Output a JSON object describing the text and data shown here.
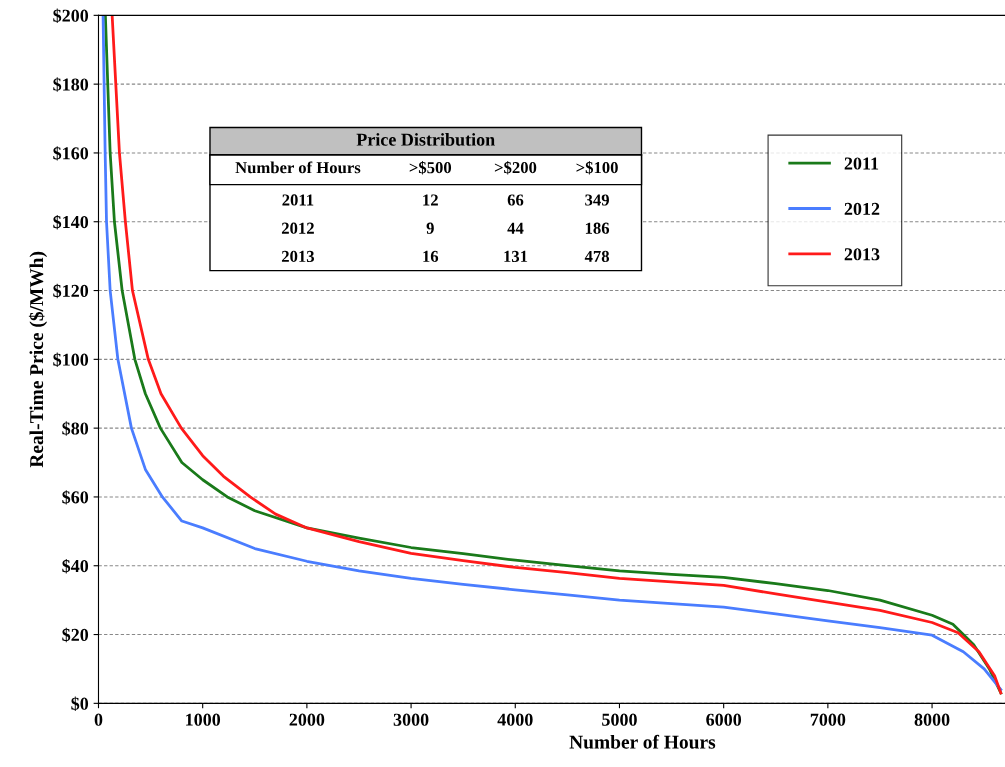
{
  "chart_data": {
    "type": "line",
    "xlabel": "Number of Hours",
    "ylabel": "Real-Time Price ($/MWh)",
    "xlim": [
      0,
      8700
    ],
    "xticks": [
      0,
      1000,
      2000,
      3000,
      4000,
      5000,
      6000,
      7000,
      8000
    ],
    "ylim": [
      0,
      200
    ],
    "yticks": [
      {
        "value": 0,
        "label": "$0"
      },
      {
        "value": 20,
        "label": "$20"
      },
      {
        "value": 40,
        "label": "$40"
      },
      {
        "value": 60,
        "label": "$60"
      },
      {
        "value": 80,
        "label": "$80"
      },
      {
        "value": 100,
        "label": "$100"
      },
      {
        "value": 120,
        "label": "$120"
      },
      {
        "value": 140,
        "label": "$140"
      },
      {
        "value": 160,
        "label": "$160"
      },
      {
        "value": 180,
        "label": "$180"
      },
      {
        "value": 200,
        "label": "$200"
      }
    ],
    "grid": "y",
    "legend": "top right",
    "marker": "none",
    "line_style": "solid",
    "annotations": [
      "Price Distribution",
      "Number of Hours",
      ">$500",
      ">$200",
      ">$100",
      "2011",
      "12",
      "66",
      "349",
      "2012",
      "9",
      "44",
      "186",
      "2013",
      "16",
      "131",
      "478"
    ],
    "series": [
      {
        "name": "2011",
        "color": "#1a7a1a",
        "x": [
          66,
          112,
          153,
          227,
          349,
          450,
          594,
          800,
          1000,
          1236,
          1500,
          2000,
          2500,
          3000,
          3500,
          4000,
          4500,
          5000,
          5500,
          6000,
          6500,
          7000,
          7500,
          8000,
          8200,
          8400,
          8550,
          8660
        ],
        "values": [
          200,
          160,
          140,
          120,
          100,
          90,
          80,
          70,
          65,
          60,
          56,
          51,
          48,
          45.3,
          43.5,
          41.6,
          40,
          38.5,
          37.5,
          36.6,
          34.8,
          32.8,
          30,
          25.6,
          23,
          17,
          10,
          3
        ]
      },
      {
        "name": "2012",
        "color": "#4a7dff",
        "x": [
          44,
          64,
          77,
          112,
          186,
          316,
          450,
          613,
          800,
          1000,
          1500,
          2000,
          2500,
          3000,
          3500,
          4000,
          4500,
          5000,
          5500,
          6000,
          6500,
          7000,
          7500,
          8000,
          8300,
          8500,
          8660
        ],
        "values": [
          200,
          160,
          140,
          120,
          100,
          80,
          68,
          60,
          53,
          51,
          45,
          41.3,
          38.5,
          36.3,
          34.6,
          33,
          31.5,
          30,
          29,
          28,
          26,
          24,
          22,
          19.8,
          15,
          10,
          4
        ]
      },
      {
        "name": "2013",
        "color": "#ff1a1a",
        "x": [
          131,
          201,
          258,
          326,
          478,
          600,
          795,
          1000,
          1200,
          1456,
          1700,
          2000,
          2500,
          3000,
          3500,
          4000,
          4500,
          5000,
          5500,
          6000,
          6500,
          7000,
          7500,
          8000,
          8250,
          8450,
          8600,
          8660
        ],
        "values": [
          200,
          160,
          140,
          120,
          100,
          90,
          80,
          72,
          66,
          60,
          55,
          51,
          47,
          43.6,
          41.5,
          39.5,
          38,
          36.3,
          35.3,
          34.3,
          31.8,
          29.4,
          27,
          23.5,
          20.5,
          15,
          8,
          3
        ]
      }
    ]
  }
}
